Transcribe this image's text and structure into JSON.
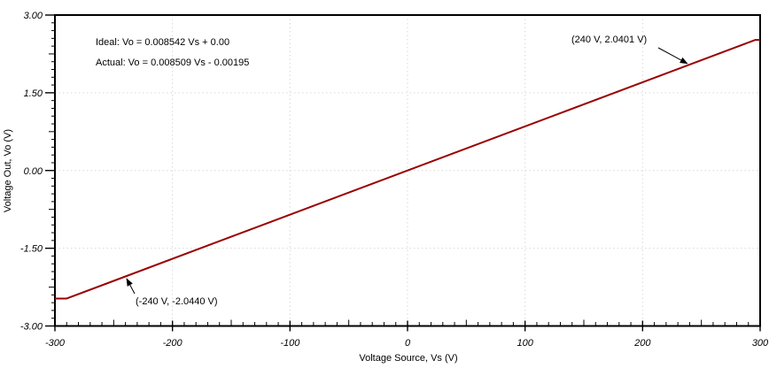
{
  "colors": {
    "trace": "#990000",
    "grid": "#d8d8d8",
    "axis": "#000000",
    "text": "#000000",
    "background": "#ffffff",
    "arrow": "#000000"
  },
  "annotations": {
    "ideal_equation": "Ideal: Vo = 0.008542 Vs + 0.00",
    "actual_equation": "Actual: Vo = 0.008509 Vs - 0.00195",
    "point_upper_label": "(240 V, 2.0401 V)",
    "point_lower_label": "(-240 V, -2.0440 V)"
  },
  "chart_data": {
    "type": "line",
    "title": "",
    "xlabel": "Voltage Source, Vs (V)",
    "ylabel": "Voltage Out, Vo (V)",
    "xlim": [
      -300,
      300
    ],
    "ylim": [
      -3.0,
      3.0
    ],
    "x_major_ticks": [
      -300,
      -200,
      -100,
      0,
      100,
      200,
      300
    ],
    "x_tick_labels": [
      "-300",
      "-200",
      "-100",
      "0",
      "100",
      "200",
      "300"
    ],
    "y_major_ticks": [
      3.0,
      1.5,
      0.0,
      -1.5,
      -3.0
    ],
    "y_tick_labels": [
      "3.00",
      "1.50",
      "0.00",
      "-1.50",
      "-3.00"
    ],
    "x_minor_step": 10,
    "y_minor_step": 0.15,
    "grid": "dashed major gridlines, interior only",
    "legend_position": "none",
    "series": [
      {
        "name": "Actual transfer curve: Vo = 0.008509 Vs - 0.00195, saturating near +2.52 V / -2.47 V",
        "color": "#990000",
        "points": [
          [
            -300,
            -2.47
          ],
          [
            -290,
            -2.47
          ],
          [
            296,
            2.52
          ],
          [
            300,
            2.52
          ]
        ]
      }
    ],
    "marked_points": [
      {
        "x": 240,
        "y": 2.0401,
        "label": "(240 V, 2.0401 V)"
      },
      {
        "x": -240,
        "y": -2.044,
        "label": "(-240 V, -2.0440 V)"
      }
    ]
  }
}
